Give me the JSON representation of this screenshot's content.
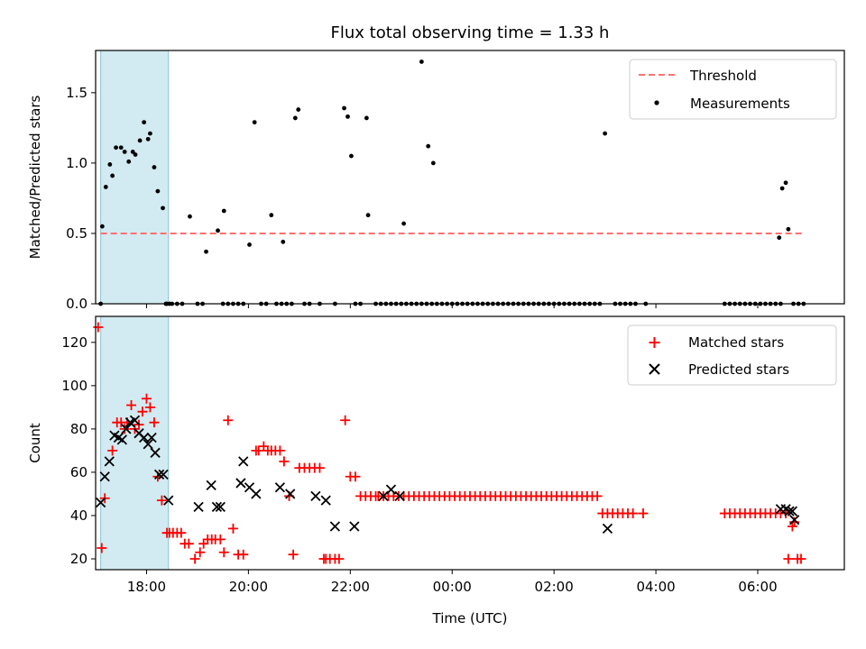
{
  "chart_data": [
    {
      "type": "scatter",
      "title": "Flux total observing time = 1.33 h",
      "xlabel": "",
      "ylabel": "Matched/Predicted stars",
      "xlim": [
        -7.0,
        7.7
      ],
      "ylim": [
        0,
        1.8
      ],
      "yticks": [
        0.0,
        0.5,
        1.0,
        1.5
      ],
      "ytick_labels": [
        "0.0",
        "0.5",
        "1.0",
        "1.5"
      ],
      "x_unit": "hours relative to 00:00 UTC",
      "highlight_span": [
        -6.9,
        -5.57
      ],
      "threshold": {
        "name": "Threshold",
        "value": 0.5,
        "x_range": [
          -6.9,
          6.9
        ],
        "color": "#ff7070",
        "style": "dashed"
      },
      "series": [
        {
          "name": "Measurements",
          "color": "#000000",
          "marker": "dot",
          "x": [
            -6.9,
            -6.87,
            -6.8,
            -6.72,
            -6.67,
            -6.6,
            -6.5,
            -6.43,
            -6.35,
            -6.27,
            -6.22,
            -6.13,
            -6.05,
            -5.97,
            -5.93,
            -5.85,
            -5.78,
            -5.68,
            -5.62,
            -5.55,
            -5.15,
            -4.83,
            -4.6,
            -4.48,
            -3.98,
            -3.88,
            -3.55,
            -3.32,
            -3.08,
            -3.02,
            -2.12,
            -2.05,
            -1.98,
            -1.68,
            -1.65,
            -0.95,
            -0.6,
            -0.47,
            -0.37,
            3.0,
            6.42,
            6.48,
            6.55,
            6.6
          ],
          "y": [
            0.0,
            0.55,
            0.83,
            0.99,
            0.91,
            1.11,
            1.11,
            1.08,
            1.01,
            1.08,
            1.06,
            1.16,
            1.29,
            1.17,
            1.21,
            0.97,
            0.8,
            0.68,
            0.0,
            0.0,
            0.62,
            0.37,
            0.52,
            0.66,
            0.42,
            1.29,
            0.63,
            0.44,
            1.32,
            1.38,
            1.39,
            1.33,
            1.05,
            1.32,
            0.63,
            0.57,
            1.72,
            1.12,
            1.0,
            1.21,
            0.47,
            0.82,
            0.86,
            0.53
          ],
          "zero_x": [
            -5.6,
            -5.5,
            -5.4,
            -5.3,
            -5.0,
            -4.9,
            -4.5,
            -4.4,
            -4.3,
            -4.2,
            -4.1,
            -3.75,
            -3.65,
            -3.45,
            -3.35,
            -3.25,
            -3.15,
            -2.9,
            -2.8,
            -2.6,
            -2.3,
            -1.9,
            -1.8,
            -1.5,
            -1.4,
            -1.3,
            -1.2,
            -1.1,
            -1.0,
            -0.9,
            -0.8,
            -0.7,
            -0.6,
            -0.5,
            -0.4,
            -0.3,
            -0.2,
            -0.1,
            0.0,
            0.1,
            0.2,
            0.3,
            0.4,
            0.5,
            0.6,
            0.7,
            0.8,
            0.9,
            1.0,
            1.1,
            1.2,
            1.3,
            1.4,
            1.5,
            1.6,
            1.7,
            1.8,
            1.9,
            2.0,
            2.1,
            2.2,
            2.3,
            2.4,
            2.5,
            2.6,
            2.7,
            2.8,
            2.9,
            3.2,
            3.3,
            3.4,
            3.5,
            3.6,
            3.8,
            5.35,
            5.45,
            5.55,
            5.65,
            5.75,
            5.85,
            5.95,
            6.05,
            6.15,
            6.25,
            6.35,
            6.45,
            6.7,
            6.8,
            6.9
          ]
        }
      ],
      "legend": {
        "position": "upper right",
        "entries": [
          "Threshold",
          "Measurements"
        ]
      },
      "grid": false
    },
    {
      "type": "scatter",
      "title": "",
      "xlabel": "Time (UTC)",
      "ylabel": "Count",
      "xlim": [
        -7.0,
        7.7
      ],
      "ylim": [
        15,
        132
      ],
      "yticks": [
        20,
        40,
        60,
        80,
        100,
        120
      ],
      "ytick_labels": [
        "20",
        "40",
        "60",
        "80",
        "100",
        "120"
      ],
      "xticks": [
        -6,
        -4,
        -2,
        0,
        2,
        4,
        6
      ],
      "xtick_labels": [
        "18:00",
        "20:00",
        "22:00",
        "00:00",
        "02:00",
        "04:00",
        "06:00"
      ],
      "highlight_span": [
        -6.9,
        -5.57
      ],
      "series": [
        {
          "name": "Matched stars",
          "color": "#ff0000",
          "marker": "plus",
          "x": [
            -6.95,
            -6.88,
            -6.82,
            -6.67,
            -6.58,
            -6.5,
            -6.43,
            -6.38,
            -6.3,
            -6.23,
            -6.15,
            -6.08,
            -6.0,
            -5.93,
            -5.85,
            -5.78,
            -5.7,
            -5.6,
            -5.55,
            -5.48,
            -5.4,
            -5.32,
            -5.25,
            -5.17,
            -5.05,
            -4.95,
            -4.88,
            -4.8,
            -4.72,
            -4.65,
            -4.55,
            -4.48,
            -4.4,
            -4.3,
            -4.2,
            -4.1,
            -3.85,
            -3.8,
            -3.7,
            -3.62,
            -3.55,
            -3.47,
            -3.38,
            -3.3,
            -3.2,
            -3.12,
            -3.0,
            -2.9,
            -2.8,
            -2.7,
            -2.6,
            -2.52,
            -2.48,
            -2.4,
            -2.3,
            -2.22,
            -2.1,
            -2.0,
            -1.9,
            -1.8,
            -1.7,
            -1.6,
            -1.5,
            -1.45,
            -1.35,
            -1.25,
            -1.15,
            -1.05,
            -0.95,
            -0.85,
            -0.75,
            -0.65,
            -0.55,
            -0.45,
            -0.35,
            -0.25,
            -0.15,
            -0.05,
            0.05,
            0.15,
            0.25,
            0.35,
            0.45,
            0.55,
            0.65,
            0.75,
            0.85,
            0.95,
            1.05,
            1.15,
            1.25,
            1.35,
            1.45,
            1.55,
            1.65,
            1.75,
            1.85,
            1.95,
            2.05,
            2.15,
            2.25,
            2.35,
            2.45,
            2.55,
            2.65,
            2.75,
            2.85,
            2.95,
            3.05,
            3.15,
            3.25,
            3.35,
            3.45,
            3.55,
            3.75,
            5.35,
            5.45,
            5.55,
            5.65,
            5.75,
            5.85,
            5.95,
            6.05,
            6.15,
            6.25,
            6.35,
            6.45,
            6.55,
            6.6,
            6.68,
            6.72,
            6.78,
            6.85
          ],
          "y": [
            127,
            25,
            48,
            70,
            83,
            83,
            80,
            83,
            91,
            80,
            82,
            88,
            94,
            90,
            83,
            58,
            47,
            32,
            32,
            32,
            32,
            32,
            27,
            27,
            20,
            23,
            27,
            29,
            29,
            29,
            29,
            23,
            84,
            34,
            22,
            22,
            70,
            70,
            72,
            70,
            70,
            70,
            70,
            65,
            49,
            22,
            62,
            62,
            62,
            62,
            62,
            20,
            20,
            20,
            20,
            20,
            84,
            58,
            58,
            49,
            49,
            49,
            49,
            49,
            49,
            49,
            49,
            49,
            49,
            49,
            49,
            49,
            49,
            49,
            49,
            49,
            49,
            49,
            49,
            49,
            49,
            49,
            49,
            49,
            49,
            49,
            49,
            49,
            49,
            49,
            49,
            49,
            49,
            49,
            49,
            49,
            49,
            49,
            49,
            49,
            49,
            49,
            49,
            49,
            49,
            49,
            49,
            41,
            41,
            41,
            41,
            41,
            41,
            41,
            41,
            41,
            41,
            41,
            41,
            41,
            41,
            41,
            41,
            41,
            41,
            41,
            41,
            41,
            20,
            35,
            37,
            20,
            20
          ]
        },
        {
          "name": "Predicted stars",
          "color": "#000000",
          "marker": "x",
          "x": [
            -6.9,
            -6.82,
            -6.73,
            -6.63,
            -6.55,
            -6.48,
            -6.4,
            -6.32,
            -6.23,
            -6.15,
            -6.05,
            -5.97,
            -5.9,
            -5.83,
            -5.75,
            -5.67,
            -5.57,
            -4.98,
            -4.73,
            -4.62,
            -4.55,
            -4.15,
            -4.1,
            -3.98,
            -3.85,
            -3.38,
            -3.18,
            -2.68,
            -2.48,
            -2.3,
            -1.92,
            -1.35,
            -1.2,
            -1.03,
            3.05,
            6.45,
            6.55,
            6.62,
            6.68,
            6.72
          ],
          "y": [
            46,
            58,
            65,
            77,
            76,
            75,
            80,
            83,
            84,
            78,
            76,
            73,
            76,
            69,
            59,
            59,
            47,
            44,
            54,
            44,
            44,
            55,
            65,
            53,
            50,
            53,
            50,
            49,
            47,
            35,
            35,
            49,
            52,
            49,
            34,
            43,
            43,
            42,
            42,
            38
          ]
        }
      ],
      "legend": {
        "position": "upper right",
        "entries": [
          "Matched stars",
          "Predicted stars"
        ]
      },
      "grid": false
    }
  ]
}
